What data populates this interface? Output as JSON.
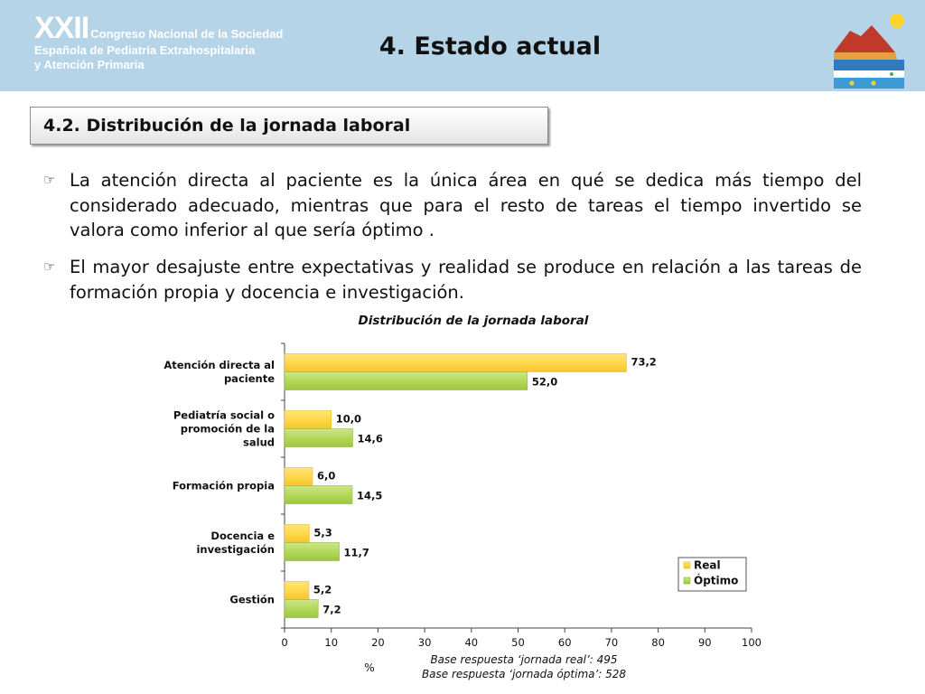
{
  "header": {
    "congress_numeral": "XXII",
    "congress_line1": "Congreso Nacional de la Sociedad",
    "congress_line2": "Española de Pediatría Extrahospitalaria",
    "congress_line3": "y Atención Primaria",
    "title": "4. Estado actual"
  },
  "section": {
    "title": "4.2. Distribución de la jornada laboral"
  },
  "bullets": [
    {
      "icon": "pointing-hand-icon",
      "text": "La atención directa al paciente es la única área en qué se dedica más tiempo del considerado adecuado, mientras que para el resto de tareas el tiempo invertido se valora como inferior al que sería óptimo ."
    },
    {
      "icon": "pointing-hand-icon",
      "text": "El mayor desajuste entre expectativas y realidad se produce en relación a las tareas de formación propia y docencia e investigación."
    }
  ],
  "chart_data": {
    "type": "bar",
    "orientation": "horizontal",
    "title": "Distribución de la jornada laboral",
    "categories": [
      "Atención directa al paciente",
      "Pediatría social o promoción de la salud",
      "Formación propia",
      "Docencia e investigación",
      "Gestión"
    ],
    "series": [
      {
        "name": "Real",
        "values": [
          73.2,
          10.0,
          6.0,
          5.3,
          5.2
        ],
        "labels": [
          "73,2",
          "10,0",
          "6,0",
          "5,3",
          "5,2"
        ],
        "color": "#ffd84a"
      },
      {
        "name": "Óptimo",
        "values": [
          52.0,
          14.6,
          14.5,
          11.7,
          7.2
        ],
        "labels": [
          "52,0",
          "14,6",
          "14,5",
          "11,7",
          "7,2"
        ],
        "color": "#b3d85a"
      }
    ],
    "xlabel": "%",
    "xlim": [
      0,
      100
    ],
    "xticks": [
      "0",
      "10",
      "20",
      "30",
      "40",
      "50",
      "60",
      "70",
      "80",
      "90",
      "100"
    ],
    "legend_position": "bottom-right",
    "grid": false,
    "notes": [
      "Base respuesta ‘jornada real’: 495",
      "Base respuesta ‘jornada óptima’: 528"
    ]
  }
}
